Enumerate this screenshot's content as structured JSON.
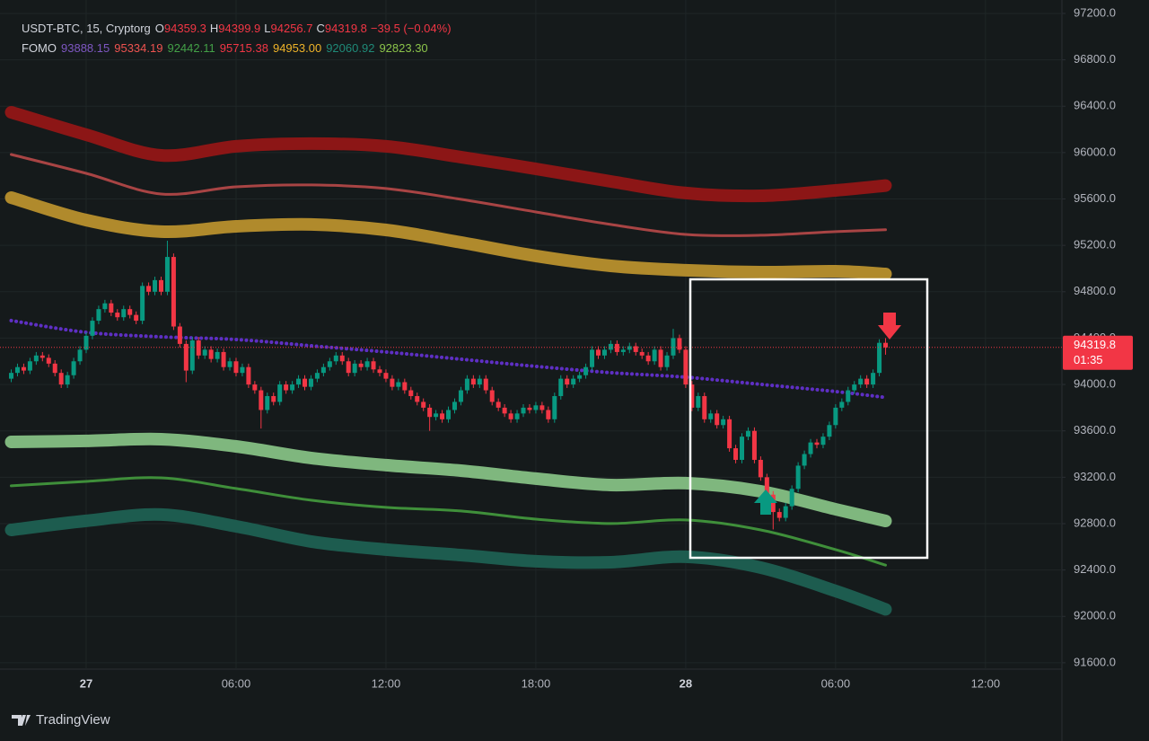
{
  "header": {
    "title": "USDT-BTC, 15, Cryptorg",
    "ohlc_labels": [
      "O",
      "H",
      "L",
      "C"
    ],
    "change": "−39.5 (−0.04%)",
    "indicator": "FOMO"
  },
  "chart_data": {
    "type": "candlestick",
    "x": [
      -3,
      -2.75,
      -2.5,
      -2.25,
      -2,
      -1.75,
      -1.5,
      -1.25,
      -1,
      -0.75,
      -0.5,
      -0.25,
      0,
      0.25,
      0.5,
      0.75,
      1,
      1.25,
      1.5,
      1.75,
      2,
      2.25,
      2.5,
      2.75,
      3,
      3.25,
      3.5,
      3.75,
      4,
      4.25,
      4.5,
      4.75,
      5,
      5.25,
      5.5,
      5.75,
      6,
      6.25,
      6.5,
      6.75,
      7,
      7.25,
      7.5,
      7.75,
      8,
      8.25,
      8.5,
      8.75,
      9,
      9.25,
      9.5,
      9.75,
      10,
      10.25,
      10.5,
      10.75,
      11,
      11.25,
      11.5,
      11.75,
      12,
      12.25,
      12.5,
      12.75,
      13,
      13.25,
      13.5,
      13.75,
      14,
      14.25,
      14.5,
      14.75,
      15,
      15.25,
      15.5,
      15.75,
      16,
      16.25,
      16.5,
      16.75,
      17,
      17.25,
      17.5,
      17.75,
      18,
      18.25,
      18.5,
      18.75,
      19,
      19.25,
      19.5,
      19.75,
      20,
      20.25,
      20.5,
      20.75,
      21,
      21.25,
      21.5,
      21.75,
      22,
      22.25,
      22.5,
      22.75,
      23,
      23.25,
      23.5,
      23.75,
      24,
      24.25,
      24.5,
      24.75,
      25,
      25.25,
      25.5,
      25.75,
      26,
      26.25,
      26.5,
      26.75,
      27,
      27.25,
      27.5,
      27.75,
      28,
      28.25,
      28.5,
      28.75,
      29,
      29.25,
      29.5,
      29.75,
      30,
      30.25,
      30.5,
      30.75,
      31,
      31.25,
      31.5,
      31.75,
      32
    ],
    "open": [
      94050,
      94100,
      94150,
      94120,
      94200,
      94250,
      94230,
      94180,
      94100,
      94000,
      94080,
      94200,
      94300,
      94420,
      94550,
      94650,
      94700,
      94620,
      94580,
      94650,
      94600,
      94550,
      94850,
      94800,
      94900,
      94800,
      95100,
      94500,
      94350,
      94120,
      94380,
      94250,
      94300,
      94220,
      94280,
      94150,
      94200,
      94100,
      94150,
      94000,
      93950,
      93780,
      93900,
      93850,
      94000,
      93950,
      94000,
      94050,
      93980,
      94050,
      94100,
      94150,
      94200,
      94250,
      94200,
      94100,
      94180,
      94150,
      94200,
      94130,
      94100,
      94050,
      93980,
      94020,
      93950,
      93900,
      93850,
      93800,
      93720,
      93750,
      93700,
      93780,
      93850,
      93950,
      94050,
      94000,
      94050,
      93950,
      93850,
      93800,
      93750,
      93700,
      93750,
      93800,
      93780,
      93820,
      93780,
      93700,
      93900,
      94050,
      94000,
      94050,
      94080,
      94150,
      94300,
      94250,
      94300,
      94350,
      94280,
      94300,
      94330,
      94280,
      94250,
      94200,
      94300,
      94150,
      94250,
      94400,
      94300,
      94000,
      93800,
      93900,
      93700,
      93750,
      93650,
      93700,
      93450,
      93350,
      93550,
      93600,
      93350,
      93200,
      93050,
      92900,
      92850,
      92950,
      93100,
      93300,
      93400,
      93500,
      93480,
      93550,
      93650,
      93800,
      93850,
      93950,
      94000,
      94050,
      94000,
      94100,
      94359.3
    ],
    "high": [
      94130,
      94180,
      94180,
      94230,
      94280,
      94280,
      94260,
      94210,
      94130,
      94110,
      94230,
      94330,
      94450,
      94580,
      94680,
      94730,
      94730,
      94650,
      94680,
      94680,
      94630,
      94880,
      94880,
      94930,
      94930,
      95240,
      95130,
      94530,
      94380,
      94410,
      94410,
      94330,
      94330,
      94310,
      94310,
      94230,
      94230,
      94180,
      94180,
      94030,
      93980,
      93930,
      93930,
      94030,
      94030,
      94030,
      94080,
      94080,
      94080,
      94130,
      94180,
      94230,
      94280,
      94280,
      94230,
      94210,
      94210,
      94230,
      94230,
      94160,
      94130,
      94080,
      94050,
      94050,
      93980,
      93930,
      93880,
      93830,
      93780,
      93780,
      93810,
      93880,
      93980,
      94080,
      94080,
      94080,
      94080,
      93980,
      93880,
      93830,
      93780,
      93780,
      93830,
      93830,
      93850,
      93850,
      93810,
      93930,
      94080,
      94080,
      94080,
      94110,
      94180,
      94330,
      94330,
      94330,
      94380,
      94380,
      94330,
      94360,
      94360,
      94310,
      94280,
      94330,
      94330,
      94280,
      94480,
      94430,
      94330,
      94030,
      93930,
      93930,
      93780,
      93780,
      93730,
      93730,
      93480,
      93580,
      93630,
      93630,
      93380,
      93230,
      93080,
      92930,
      92980,
      93130,
      93330,
      93430,
      93530,
      93530,
      93580,
      93680,
      93830,
      93880,
      93980,
      94030,
      94080,
      94080,
      94130,
      94390,
      94399.9
    ],
    "low": [
      94020,
      94070,
      94090,
      94090,
      94170,
      94200,
      94150,
      94070,
      93970,
      93970,
      94050,
      94170,
      94270,
      94390,
      94520,
      94620,
      94590,
      94550,
      94550,
      94570,
      94520,
      94520,
      94770,
      94770,
      94770,
      94770,
      94470,
      94320,
      94020,
      94090,
      94220,
      94220,
      94190,
      94190,
      94120,
      94120,
      94070,
      94070,
      93970,
      93920,
      93620,
      93750,
      93820,
      93820,
      93920,
      93920,
      93970,
      93950,
      93950,
      94020,
      94070,
      94120,
      94170,
      94170,
      94070,
      94070,
      94120,
      94120,
      94100,
      94070,
      94020,
      93950,
      93950,
      93920,
      93870,
      93820,
      93770,
      93600,
      93690,
      93670,
      93670,
      93750,
      93820,
      93920,
      93970,
      93970,
      93920,
      93820,
      93770,
      93720,
      93670,
      93670,
      93720,
      93750,
      93750,
      93750,
      93670,
      93670,
      93870,
      93970,
      93970,
      94020,
      94050,
      94120,
      94220,
      94220,
      94270,
      94250,
      94250,
      94270,
      94250,
      94220,
      94170,
      94170,
      94120,
      94120,
      94220,
      94270,
      93970,
      93770,
      93770,
      93670,
      93670,
      93620,
      93620,
      93420,
      93320,
      93320,
      93520,
      93320,
      93170,
      93020,
      92750,
      92820,
      92820,
      92920,
      93070,
      93270,
      93370,
      93450,
      93450,
      93520,
      93620,
      93770,
      93820,
      93920,
      93970,
      93970,
      93970,
      94070,
      94256.7
    ],
    "close": [
      94100,
      94150,
      94120,
      94200,
      94250,
      94230,
      94180,
      94100,
      94000,
      94080,
      94200,
      94300,
      94420,
      94550,
      94650,
      94700,
      94620,
      94580,
      94650,
      94600,
      94550,
      94850,
      94800,
      94900,
      94800,
      95100,
      94500,
      94350,
      94120,
      94380,
      94250,
      94300,
      94220,
      94280,
      94150,
      94200,
      94100,
      94150,
      94000,
      93950,
      93780,
      93900,
      93850,
      94000,
      93950,
      94000,
      94050,
      93980,
      94050,
      94100,
      94150,
      94200,
      94250,
      94200,
      94100,
      94180,
      94150,
      94200,
      94130,
      94100,
      94050,
      93980,
      94020,
      93950,
      93900,
      93850,
      93800,
      93720,
      93750,
      93700,
      93780,
      93850,
      93950,
      94050,
      94000,
      94050,
      93950,
      93850,
      93800,
      93750,
      93700,
      93750,
      93800,
      93780,
      93820,
      93780,
      93700,
      93900,
      94050,
      94000,
      94050,
      94080,
      94150,
      94300,
      94250,
      94300,
      94350,
      94280,
      94300,
      94330,
      94280,
      94250,
      94200,
      94300,
      94150,
      94250,
      94400,
      94300,
      94000,
      93800,
      93900,
      93700,
      93750,
      93650,
      93700,
      93450,
      93350,
      93550,
      93600,
      93350,
      93200,
      93050,
      92900,
      92850,
      92950,
      93100,
      93300,
      93400,
      93500,
      93480,
      93550,
      93650,
      93800,
      93850,
      93950,
      94000,
      94050,
      94000,
      94100,
      94359.3,
      94319.8
    ],
    "up_color": "#089981",
    "down_color": "#f23645",
    "last_price_countdown": "01:35",
    "xlim": [
      -3.45,
      39.06
    ],
    "xticks": [
      {
        "value": 0,
        "label": "27"
      },
      {
        "value": 6,
        "label": "06:00"
      },
      {
        "value": 12,
        "label": "12:00"
      },
      {
        "value": 18,
        "label": "18:00"
      },
      {
        "value": 24,
        "label": "28"
      },
      {
        "value": 30,
        "label": "06:00"
      },
      {
        "value": 36,
        "label": "12:00"
      }
    ],
    "ylim": [
      91545,
      97316
    ],
    "yticks": [
      {
        "value": 91600,
        "label": "91600.0"
      },
      {
        "value": 92000,
        "label": "92000.0"
      },
      {
        "value": 92400,
        "label": "92400.0"
      },
      {
        "value": 92800,
        "label": "92800.0"
      },
      {
        "value": 93200,
        "label": "93200.0"
      },
      {
        "value": 93600,
        "label": "93600.0"
      },
      {
        "value": 94000,
        "label": "94000.0"
      },
      {
        "value": 94400,
        "label": "94400.0"
      },
      {
        "value": 94800,
        "label": "94800.0"
      },
      {
        "value": 95200,
        "label": "95200.0"
      },
      {
        "value": 95600,
        "label": "95600.0"
      },
      {
        "value": 96000,
        "label": "96000.0"
      },
      {
        "value": 96400,
        "label": "96400.0"
      },
      {
        "value": 96800,
        "label": "96800.0"
      },
      {
        "value": 97200,
        "label": "97200.0"
      }
    ],
    "grid": true,
    "overlays": {
      "type": "line",
      "x": [
        -3,
        0,
        3,
        6,
        9,
        12,
        15,
        18,
        21,
        24,
        27,
        30,
        32
      ],
      "series": [
        {
          "color": "#5e2fc4",
          "legend_color": "#7e57c2",
          "width": 4,
          "style": "dotted",
          "legend_value": "93888.15",
          "values": [
            94551,
            94450,
            94411,
            94388,
            94334,
            94280,
            94218,
            94156,
            94102,
            94063,
            94001,
            93939,
            93888.15
          ]
        },
        {
          "color": "#a84444",
          "legend_color": "#ef5350",
          "width": 3,
          "style": "solid",
          "legend_value": "95334.19",
          "values": [
            95984,
            95821,
            95643,
            95705,
            95721,
            95690,
            95597,
            95488,
            95380,
            95294,
            95287,
            95318,
            95334.19
          ]
        },
        {
          "color": "#3f8f3a",
          "legend_color": "#43a047",
          "width": 3,
          "style": "solid",
          "legend_value": "92442.11",
          "values": [
            93126,
            93164,
            93195,
            93103,
            93002,
            92940,
            92909,
            92839,
            92801,
            92832,
            92746,
            92576,
            92442.11
          ]
        },
        {
          "color": "#8c1616",
          "legend_color": "#f23645",
          "width": 14,
          "style": "solid",
          "legend_value": "95715.38",
          "values": [
            96348,
            96154,
            95976,
            96054,
            96077,
            96054,
            95961,
            95860,
            95751,
            95651,
            95627,
            95674,
            95715.38
          ]
        },
        {
          "color": "#b08a2c",
          "legend_color": "#f0b429",
          "width": 14,
          "style": "solid",
          "legend_value": "94953.00",
          "values": [
            95612,
            95418,
            95318,
            95364,
            95380,
            95333,
            95225,
            95109,
            95023,
            94985,
            94969,
            94977,
            94953
          ]
        },
        {
          "color": "#1d5c4f",
          "legend_color": "#1f8a78",
          "width": 14,
          "style": "solid",
          "legend_value": "92060.92",
          "values": [
            92746,
            92824,
            92878,
            92777,
            92646,
            92576,
            92529,
            92475,
            92467,
            92514,
            92421,
            92219,
            92060.92
          ]
        },
        {
          "color": "#7fb77e",
          "legend_color": "#8bc34a",
          "width": 14,
          "style": "solid",
          "legend_value": "92823.30",
          "values": [
            93505,
            93513,
            93528,
            93466,
            93366,
            93304,
            93257,
            93188,
            93133,
            93149,
            93079,
            92924,
            92823.3
          ]
        }
      ]
    }
  },
  "footer": {
    "brand": "TradingView"
  }
}
